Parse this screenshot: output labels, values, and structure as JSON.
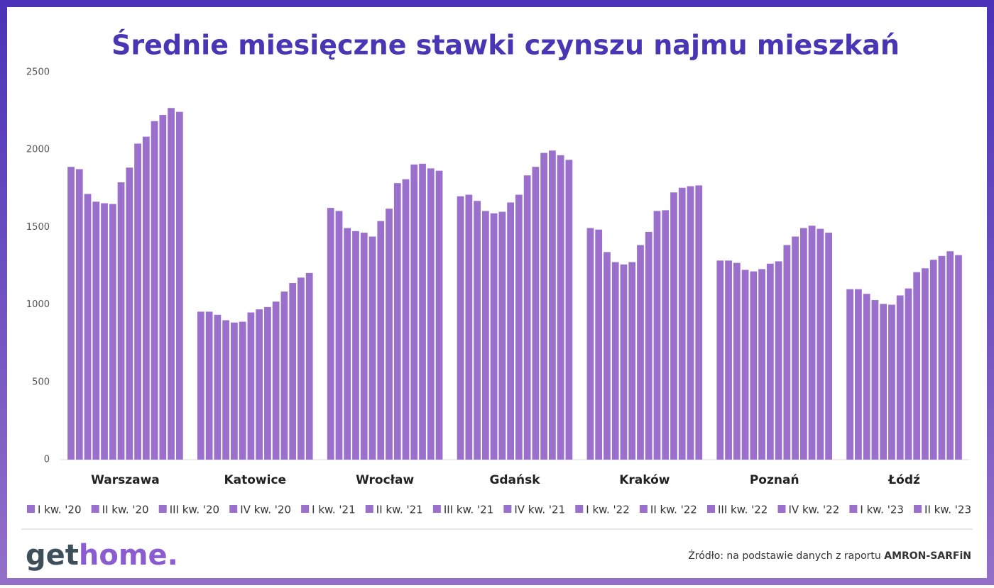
{
  "chart_data": {
    "type": "bar",
    "title": "Średnie miesięczne stawki czynszu najmu mieszkań",
    "categories": [
      "Warszawa",
      "Katowice",
      "Wrocław",
      "Gdańsk",
      "Kraków",
      "Poznań",
      "Łódź"
    ],
    "ylim": [
      0,
      2500
    ],
    "yticks": [
      0,
      500,
      1000,
      1500,
      2000,
      2500
    ],
    "grid": false,
    "legend": "bottom",
    "series": [
      {
        "name": "I kw. '20",
        "color": "#9a70cc",
        "values": [
          1890,
          955,
          1625,
          1700,
          1495,
          1285,
          1100
        ]
      },
      {
        "name": "II kw. '20",
        "color": "#9a70cc",
        "values": [
          1875,
          955,
          1605,
          1710,
          1485,
          1285,
          1100
        ]
      },
      {
        "name": "III kw. '20",
        "color": "#9a70cc",
        "values": [
          1715,
          935,
          1495,
          1670,
          1340,
          1270,
          1070
        ]
      },
      {
        "name": "IV kw. '20",
        "color": "#9a70cc",
        "values": [
          1665,
          900,
          1475,
          1605,
          1275,
          1225,
          1030
        ]
      },
      {
        "name": "I kw. '21",
        "color": "#9a70cc",
        "values": [
          1655,
          885,
          1465,
          1590,
          1260,
          1215,
          1005
        ]
      },
      {
        "name": "II kw. '21",
        "color": "#9a70cc",
        "values": [
          1650,
          890,
          1440,
          1600,
          1275,
          1230,
          1000
        ]
      },
      {
        "name": "III kw. '21",
        "color": "#9a70cc",
        "values": [
          1790,
          950,
          1540,
          1660,
          1385,
          1265,
          1060
        ]
      },
      {
        "name": "IV kw. '21",
        "color": "#9a70cc",
        "values": [
          1885,
          970,
          1620,
          1710,
          1470,
          1280,
          1105
        ]
      },
      {
        "name": "I kw. '22",
        "color": "#9a70cc",
        "values": [
          2040,
          985,
          1785,
          1835,
          1605,
          1385,
          1210
        ]
      },
      {
        "name": "II kw. '22",
        "color": "#9a70cc",
        "values": [
          2085,
          1020,
          1810,
          1890,
          1610,
          1440,
          1235
        ]
      },
      {
        "name": "III kw. '22",
        "color": "#9a70cc",
        "values": [
          2185,
          1085,
          1905,
          1980,
          1725,
          1495,
          1290
        ]
      },
      {
        "name": "IV kw. '22",
        "color": "#9a70cc",
        "values": [
          2225,
          1140,
          1910,
          1995,
          1755,
          1510,
          1315
        ]
      },
      {
        "name": "I kw. '23",
        "color": "#9a70cc",
        "values": [
          2270,
          1175,
          1880,
          1965,
          1765,
          1490,
          1345
        ]
      },
      {
        "name": "II kw. '23",
        "color": "#9a70cc",
        "values": [
          2245,
          1205,
          1865,
          1935,
          1770,
          1465,
          1320
        ]
      }
    ]
  },
  "footer": {
    "logo_a": "get",
    "logo_b": "home.",
    "source": "Źródło: na podstawie danych z raportu",
    "source_bold": "AMRON-SARFiN"
  }
}
